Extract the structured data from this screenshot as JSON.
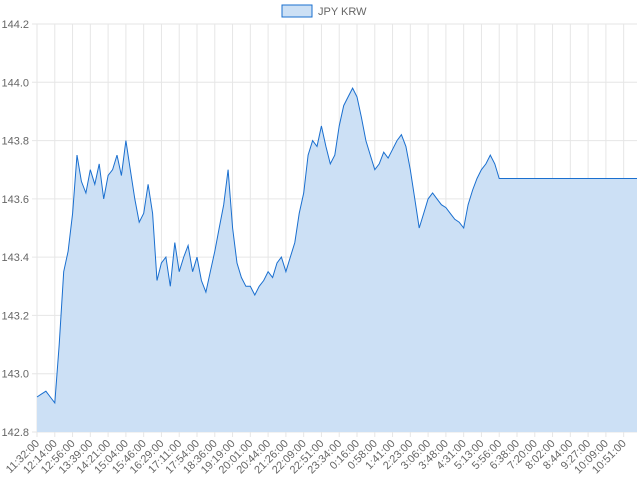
{
  "chart_data": {
    "type": "line",
    "categories": [
      "11:32:00",
      null,
      null,
      null,
      "12:14:00",
      null,
      null,
      null,
      "12:56:00",
      null,
      null,
      null,
      "13:39:00",
      null,
      null,
      null,
      "14:21:00",
      null,
      null,
      null,
      "15:04:00",
      null,
      null,
      null,
      "15:46:00",
      null,
      null,
      null,
      "16:29:00",
      null,
      null,
      null,
      "17:11:00",
      null,
      null,
      null,
      "17:54:00",
      null,
      null,
      null,
      "18:36:00",
      null,
      null,
      null,
      "19:19:00",
      null,
      null,
      null,
      "20:01:00",
      null,
      null,
      null,
      "20:44:00",
      null,
      null,
      null,
      "21:26:00",
      null,
      null,
      null,
      "22:09:00",
      null,
      null,
      null,
      "22:51:00",
      null,
      null,
      null,
      "23:34:00",
      null,
      null,
      null,
      "0:16:00",
      null,
      null,
      null,
      "0:58:00",
      null,
      null,
      null,
      "1:41:00",
      null,
      null,
      null,
      "2:23:00",
      null,
      null,
      null,
      "3:06:00",
      null,
      null,
      null,
      "3:48:00",
      null,
      null,
      null,
      "4:31:00",
      null,
      null,
      null,
      "5:13:00",
      null,
      null,
      null,
      "5:56:00",
      null,
      null,
      null,
      "6:38:00",
      null,
      null,
      null,
      "7:20:00",
      null,
      null,
      null,
      "8:02:00",
      null,
      null,
      null,
      "8:44:00",
      null,
      null,
      null,
      "9:27:00",
      null,
      null,
      null,
      "10:09:00",
      null,
      null,
      null,
      "10:51:00",
      null,
      null,
      null
    ],
    "series": [
      {
        "name": "JPY KRW",
        "color": "#1a6fcf",
        "fill": "#cce0f5",
        "values": [
          142.92,
          142.93,
          142.94,
          142.92,
          142.9,
          143.1,
          143.35,
          143.42,
          143.55,
          143.75,
          143.66,
          143.62,
          143.7,
          143.65,
          143.72,
          143.6,
          143.68,
          143.7,
          143.75,
          143.68,
          143.8,
          143.7,
          143.6,
          143.52,
          143.55,
          143.65,
          143.55,
          143.32,
          143.38,
          143.4,
          143.3,
          143.45,
          143.35,
          143.4,
          143.44,
          143.35,
          143.4,
          143.32,
          143.28,
          143.35,
          143.42,
          143.5,
          143.58,
          143.7,
          143.5,
          143.38,
          143.33,
          143.3,
          143.3,
          143.27,
          143.3,
          143.32,
          143.35,
          143.33,
          143.38,
          143.4,
          143.35,
          143.4,
          143.45,
          143.55,
          143.62,
          143.75,
          143.8,
          143.78,
          143.85,
          143.78,
          143.72,
          143.75,
          143.85,
          143.92,
          143.95,
          143.98,
          143.95,
          143.88,
          143.8,
          143.75,
          143.7,
          143.72,
          143.76,
          143.74,
          143.77,
          143.8,
          143.82,
          143.78,
          143.7,
          143.6,
          143.5,
          143.55,
          143.6,
          143.62,
          143.6,
          143.58,
          143.57,
          143.55,
          143.53,
          143.52,
          143.5,
          143.58,
          143.63,
          143.67,
          143.7,
          143.72,
          143.75,
          143.72,
          143.67,
          143.67,
          143.67,
          143.67,
          143.67,
          143.67,
          143.67,
          143.67,
          143.67,
          143.67,
          143.67,
          143.67,
          143.67,
          143.67,
          143.67,
          143.67,
          143.67,
          143.67,
          143.67,
          143.67,
          143.67,
          143.67,
          143.67,
          143.67,
          143.67,
          143.67,
          143.67,
          143.67,
          143.67,
          143.67,
          143.67,
          143.67
        ]
      }
    ],
    "ylim": [
      142.8,
      144.2
    ],
    "yticks": [
      142.8,
      {
        "value": 143.0,
        "label": "143.0"
      },
      143.2,
      143.4,
      143.6,
      143.8,
      {
        "value": 144.0,
        "label": "144.0"
      },
      144.2
    ],
    "grid": true,
    "legend": "top"
  }
}
